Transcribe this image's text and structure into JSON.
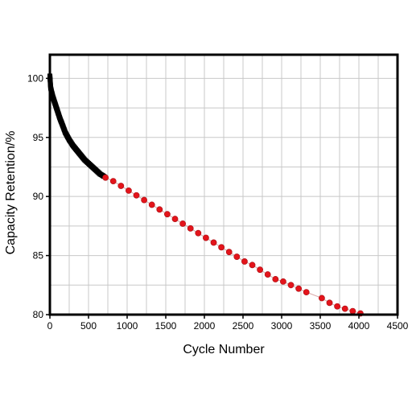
{
  "chart_data": {
    "type": "scatter",
    "xlabel": "Cycle Number",
    "ylabel": "Capacity Retention/%",
    "xlim": [
      0,
      4500
    ],
    "ylim": [
      80,
      102
    ],
    "x_ticks": [
      0,
      500,
      1000,
      1500,
      2000,
      2500,
      3000,
      3500,
      4000,
      4500
    ],
    "y_ticks": [
      80,
      85,
      90,
      95,
      100
    ],
    "x_tick_labels": [
      "0",
      "500",
      "1000",
      "1500",
      "2000",
      "2500",
      "3000",
      "3500",
      "4000",
      "4500"
    ],
    "y_tick_labels": [
      "80",
      "85",
      "90",
      "95",
      "100"
    ],
    "grid": true,
    "legend": "none",
    "series": [
      {
        "color": "#000000",
        "marker": "square",
        "x": [
          0,
          10,
          20,
          40,
          60,
          80,
          100,
          130,
          160,
          200,
          250,
          300,
          350,
          400,
          450,
          500,
          550,
          600,
          650,
          700
        ],
        "values": [
          100.2,
          99.2,
          98.9,
          98.4,
          98.0,
          97.6,
          97.2,
          96.6,
          96.1,
          95.4,
          94.8,
          94.3,
          93.9,
          93.5,
          93.1,
          92.8,
          92.5,
          92.2,
          91.9,
          91.7
        ]
      },
      {
        "color": "#e3141b",
        "marker": "circle",
        "line_color": "#d9a6a6",
        "x": [
          720,
          820,
          920,
          1020,
          1120,
          1220,
          1320,
          1420,
          1520,
          1620,
          1720,
          1820,
          1920,
          2020,
          2120,
          2220,
          2320,
          2420,
          2520,
          2620,
          2720,
          2820,
          2920,
          3020,
          3120,
          3220,
          3320,
          3520,
          3620,
          3720,
          3820,
          3920,
          4020
        ],
        "values": [
          91.6,
          91.3,
          90.9,
          90.5,
          90.1,
          89.7,
          89.3,
          88.9,
          88.5,
          88.1,
          87.7,
          87.3,
          86.9,
          86.5,
          86.1,
          85.7,
          85.3,
          84.9,
          84.5,
          84.2,
          83.8,
          83.4,
          83.0,
          82.8,
          82.5,
          82.2,
          81.9,
          81.4,
          81.0,
          80.7,
          80.5,
          80.3,
          80.1
        ]
      }
    ]
  }
}
